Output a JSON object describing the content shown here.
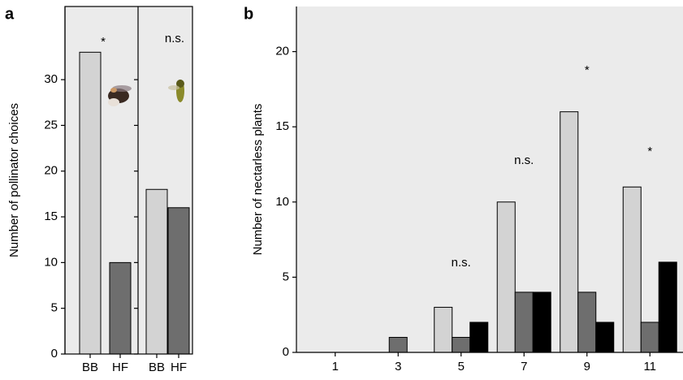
{
  "chart_data": [
    {
      "type": "bar",
      "panel": "a",
      "ylabel": "Number of pollinator choices",
      "categories": [
        "BB",
        "HF",
        "BB",
        "HF"
      ],
      "values": [
        33,
        10,
        18,
        16
      ],
      "colors": [
        "#d3d3d3",
        "#6e6e6e",
        "#d3d3d3",
        "#6e6e6e"
      ],
      "ylim": [
        0,
        38
      ],
      "yticks": [
        0,
        5,
        10,
        15,
        20,
        25,
        30
      ],
      "annotations": [
        "*",
        "n.s."
      ]
    },
    {
      "type": "grouped_bar",
      "panel": "b",
      "ylabel": "Number of nectarless plants",
      "categories": [
        "1",
        "3",
        "5",
        "7",
        "9",
        "11"
      ],
      "series": [
        {
          "color": "#d3d3d3",
          "values": [
            0,
            0,
            3,
            10,
            16,
            11
          ]
        },
        {
          "color": "#6e6e6e",
          "values": [
            0,
            1,
            1,
            4,
            4,
            2
          ]
        },
        {
          "color": "#000000",
          "values": [
            0,
            0,
            2,
            4,
            2,
            6
          ]
        }
      ],
      "ylim": [
        0,
        23
      ],
      "yticks": [
        0,
        5,
        10,
        15,
        20
      ],
      "annotations": [
        "n.s.",
        "n.s.",
        "*",
        "*"
      ]
    }
  ]
}
